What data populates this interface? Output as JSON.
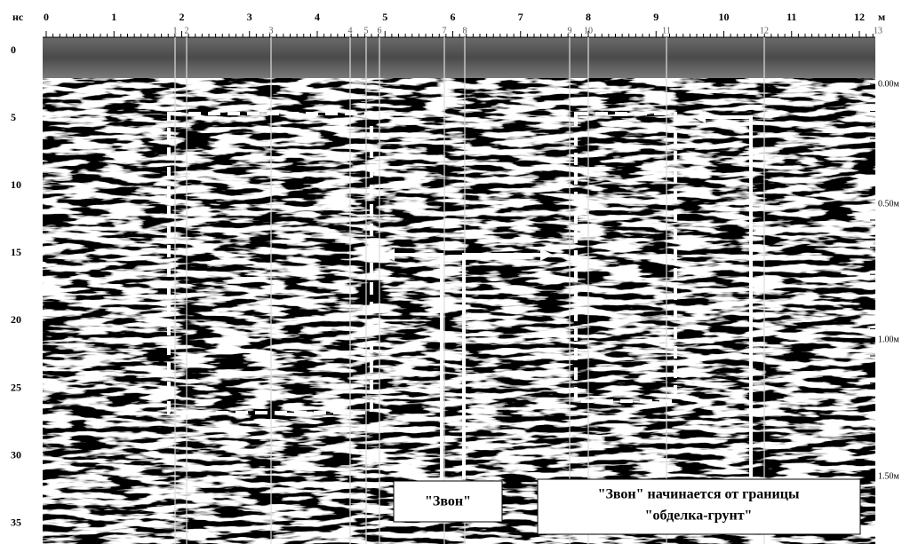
{
  "x_axis": {
    "unit": "м",
    "labels": [
      "0",
      "1",
      "2",
      "3",
      "4",
      "5",
      "6",
      "7",
      "8",
      "9",
      "10",
      "11",
      "12"
    ]
  },
  "y_axis": {
    "unit": "нс",
    "labels": [
      "0",
      "5",
      "10",
      "15",
      "20",
      "25",
      "30",
      "35"
    ]
  },
  "depth_labels": [
    "0.00м",
    "0.50м",
    "1.00м",
    "1.50м"
  ],
  "markers": [
    "1",
    "2",
    "3",
    "4",
    "5",
    "6",
    "7",
    "8",
    "9",
    "10",
    "11",
    "12",
    "13"
  ],
  "annotations": {
    "ring": "\"Звон\"",
    "boundary_line1": "\"Звон\" начинается от границы",
    "boundary_line2": "\"обделка-грунт\""
  }
}
